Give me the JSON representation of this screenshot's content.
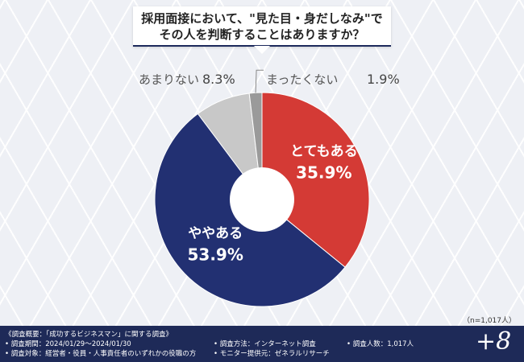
{
  "title": {
    "line1": "採用面接において、\"見た目・身だしなみ\"で",
    "line2": "その人を判断することはありますか？"
  },
  "chart_data": {
    "type": "pie",
    "donut": true,
    "categories": [
      "とてもある",
      "ややある",
      "あまりない",
      "まったくない"
    ],
    "values": [
      35.9,
      53.9,
      8.3,
      1.9
    ],
    "value_labels": [
      "35.9%",
      "53.9%",
      "8.3%",
      "1.9%"
    ],
    "colors": [
      "#d43a35",
      "#223072",
      "#c8c8c8",
      "#9a9a9a"
    ]
  },
  "sample_note": "（n=1,017人）",
  "footer": {
    "col1": [
      "《調査概要：「成功するビジネスマン」に関する調査》",
      "• 調査期間：2024/01/29～2024/01/30",
      "• 調査対象：経営者・役員・人事責任者のいずれかの役職の方"
    ],
    "col2": [
      "• 調査方法：インターネット調査",
      "• モニター提供元：ゼネラルリサーチ"
    ],
    "col3": [
      "• 調査人数：1,017人"
    ],
    "logo": "+8"
  }
}
